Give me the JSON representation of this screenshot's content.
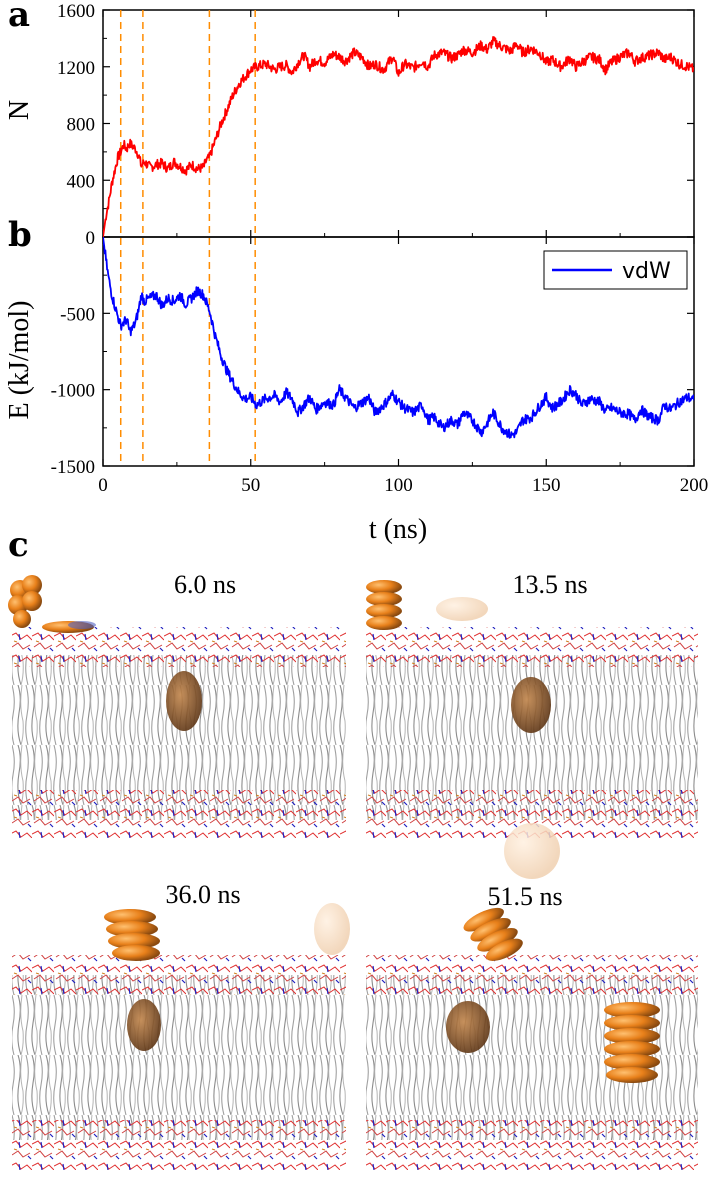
{
  "panel_labels": {
    "a": "a",
    "b": "b",
    "c": "c"
  },
  "chart_data": [
    {
      "panel": "a",
      "type": "line",
      "title": "",
      "xlabel": "",
      "ylabel": "N",
      "xlim": [
        0,
        200
      ],
      "ylim": [
        0,
        1600
      ],
      "yticks": [
        0,
        400,
        800,
        1200,
        1600
      ],
      "xticks": [
        0,
        50,
        100,
        150,
        200
      ],
      "color": "#ff0000",
      "series": [
        {
          "name": "N",
          "x": [
            0,
            1,
            2,
            3,
            4,
            5,
            6,
            7,
            8,
            9,
            10,
            11,
            12,
            13,
            14,
            16,
            18,
            20,
            22,
            24,
            26,
            28,
            30,
            32,
            34,
            35,
            36,
            37,
            38,
            40,
            42,
            44,
            46,
            48,
            50,
            52,
            55,
            58,
            60,
            62,
            64,
            66,
            68,
            70,
            72,
            75,
            78,
            80,
            82,
            85,
            88,
            90,
            92,
            95,
            98,
            100,
            102,
            105,
            108,
            110,
            112,
            115,
            118,
            120,
            122,
            125,
            128,
            130,
            132,
            135,
            138,
            140,
            142,
            145,
            148,
            150,
            152,
            155,
            158,
            160,
            162,
            165,
            168,
            170,
            172,
            175,
            178,
            180,
            182,
            185,
            188,
            190,
            192,
            195,
            198,
            200
          ],
          "values": [
            0,
            150,
            250,
            380,
            470,
            560,
            600,
            650,
            620,
            660,
            640,
            620,
            580,
            500,
            530,
            490,
            510,
            520,
            480,
            530,
            500,
            470,
            510,
            480,
            490,
            540,
            560,
            620,
            680,
            800,
            900,
            1000,
            1080,
            1130,
            1180,
            1200,
            1220,
            1180,
            1200,
            1210,
            1160,
            1230,
            1280,
            1200,
            1250,
            1230,
            1290,
            1270,
            1240,
            1300,
            1260,
            1200,
            1220,
            1180,
            1270,
            1150,
            1220,
            1190,
            1240,
            1200,
            1280,
            1300,
            1260,
            1280,
            1320,
            1300,
            1350,
            1320,
            1380,
            1340,
            1310,
            1360,
            1300,
            1330,
            1290,
            1230,
            1250,
            1200,
            1260,
            1200,
            1230,
            1270,
            1250,
            1180,
            1230,
            1270,
            1300,
            1240,
            1260,
            1280,
            1300,
            1250,
            1270,
            1220,
            1200,
            1180
          ]
        }
      ],
      "markers_x": [
        6.0,
        13.5,
        36.0,
        51.5
      ]
    },
    {
      "panel": "b",
      "type": "line",
      "title": "",
      "xlabel": "t (ns)",
      "ylabel": "E (kJ/mol)",
      "xlim": [
        0,
        200
      ],
      "ylim": [
        -1500,
        0
      ],
      "yticks": [
        0,
        -500,
        -1000,
        -1500
      ],
      "xticks": [
        0,
        50,
        100,
        150,
        200
      ],
      "color": "#0000ff",
      "legend": {
        "label": "vdW",
        "position": "top-right"
      },
      "series": [
        {
          "name": "vdW",
          "x": [
            0,
            1,
            2,
            3,
            4,
            5,
            6,
            7,
            8,
            9,
            10,
            11,
            12,
            13,
            14,
            16,
            18,
            20,
            22,
            24,
            26,
            28,
            30,
            32,
            34,
            35,
            36,
            37,
            38,
            40,
            42,
            44,
            46,
            48,
            50,
            52,
            55,
            58,
            60,
            62,
            64,
            66,
            68,
            70,
            72,
            75,
            78,
            80,
            82,
            85,
            88,
            90,
            92,
            95,
            98,
            100,
            102,
            105,
            108,
            110,
            112,
            115,
            118,
            120,
            122,
            125,
            128,
            130,
            132,
            135,
            138,
            140,
            142,
            145,
            148,
            150,
            152,
            155,
            158,
            160,
            162,
            165,
            168,
            170,
            172,
            175,
            178,
            180,
            182,
            185,
            188,
            190,
            192,
            195,
            198,
            200
          ],
          "values": [
            0,
            -150,
            -280,
            -380,
            -450,
            -520,
            -580,
            -560,
            -540,
            -620,
            -600,
            -560,
            -480,
            -380,
            -420,
            -400,
            -380,
            -450,
            -400,
            -420,
            -380,
            -440,
            -400,
            -350,
            -380,
            -430,
            -480,
            -560,
            -650,
            -780,
            -880,
            -950,
            -1020,
            -1060,
            -1050,
            -1100,
            -1060,
            -1040,
            -1080,
            -1020,
            -1060,
            -1150,
            -1100,
            -1050,
            -1130,
            -1080,
            -1100,
            -1000,
            -1050,
            -1120,
            -1080,
            -1050,
            -1150,
            -1100,
            -1030,
            -1080,
            -1120,
            -1150,
            -1100,
            -1200,
            -1180,
            -1250,
            -1200,
            -1230,
            -1150,
            -1200,
            -1280,
            -1220,
            -1150,
            -1250,
            -1300,
            -1280,
            -1200,
            -1180,
            -1100,
            -1050,
            -1120,
            -1080,
            -1000,
            -1030,
            -1100,
            -1060,
            -1080,
            -1140,
            -1120,
            -1150,
            -1160,
            -1200,
            -1130,
            -1180,
            -1200,
            -1100,
            -1130,
            -1080,
            -1050,
            -1070
          ]
        }
      ],
      "markers_x": [
        6.0,
        13.5,
        36.0,
        51.5
      ]
    }
  ],
  "snapshots": [
    {
      "label": "6.0 ns"
    },
    {
      "label": "13.5 ns"
    },
    {
      "label": "36.0 ns"
    },
    {
      "label": "51.5 ns"
    }
  ],
  "colors": {
    "n_line": "#ff0000",
    "e_line": "#0000ff",
    "marker": "#ff8c00",
    "lipid_tail": "#9a9a9a",
    "headgroup_red": "#e03030",
    "headgroup_blue": "#2020c0",
    "particle": "#e8801a",
    "particle_dark": "#8a4a14"
  }
}
